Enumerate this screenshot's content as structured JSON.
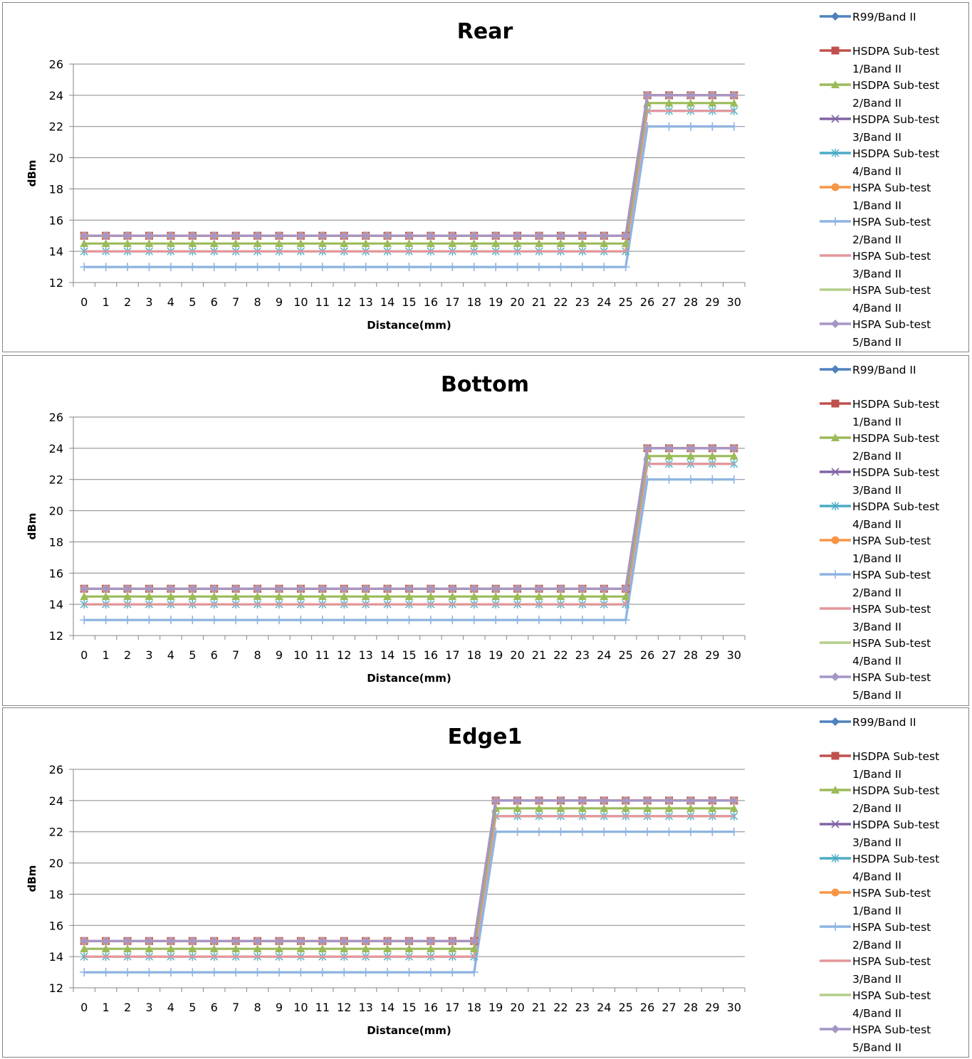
{
  "chart_data": [
    {
      "type": "line",
      "title": "Rear",
      "xlabel": "Distance(mm)",
      "ylabel": "dBm",
      "ylim": [
        12,
        26
      ],
      "yticks": [
        12,
        14,
        16,
        18,
        20,
        22,
        24,
        26
      ],
      "categories": [
        "0",
        "1",
        "2",
        "3",
        "4",
        "5",
        "6",
        "7",
        "8",
        "9",
        "10",
        "11",
        "12",
        "13",
        "14",
        "15",
        "16",
        "17",
        "18",
        "19",
        "20",
        "21",
        "22",
        "23",
        "24",
        "25",
        "26",
        "27",
        "28",
        "29",
        "30"
      ],
      "grid": true,
      "legend_position": "right",
      "series": [
        {
          "name": "R99/Band II",
          "color": "#4F81BD",
          "marker": "diamond",
          "low": 15,
          "high": 24,
          "switch_at": 26
        },
        {
          "name": "HSDPA Sub-test 1/Band II",
          "color": "#C0504D",
          "marker": "square",
          "low": 15,
          "high": 24,
          "switch_at": 26
        },
        {
          "name": "HSDPA Sub-test 2/Band II",
          "color": "#9BBB59",
          "marker": "triangle",
          "low": 14.5,
          "high": 23.5,
          "switch_at": 26
        },
        {
          "name": "HSDPA Sub-test 3/Band II",
          "color": "#8064A2",
          "marker": "x",
          "low": 15,
          "high": 24,
          "switch_at": 26
        },
        {
          "name": "HSDPA Sub-test 4/Band II",
          "color": "#4BACC6",
          "marker": "star",
          "low": 14,
          "high": 23,
          "switch_at": 26
        },
        {
          "name": "HSPA Sub-test 1/Band II",
          "color": "#F79646",
          "marker": "circle",
          "low": 15,
          "high": 24,
          "switch_at": 26
        },
        {
          "name": "HSPA Sub-test 2/Band II",
          "color": "#8EB4E3",
          "marker": "plus",
          "low": 13,
          "high": 22,
          "switch_at": 26
        },
        {
          "name": "HSPA Sub-test 3/Band II",
          "color": "#E6969A",
          "marker": "none",
          "low": 14,
          "high": 23,
          "switch_at": 26
        },
        {
          "name": "HSPA Sub-test 4/Band II",
          "color": "#B3CE89",
          "marker": "none",
          "low": 13,
          "high": 22,
          "switch_at": 26
        },
        {
          "name": "HSPA Sub-test 5/Band II",
          "color": "#A596C6",
          "marker": "diamond",
          "low": 15,
          "high": 24,
          "switch_at": 26
        }
      ]
    },
    {
      "type": "line",
      "title": "Bottom",
      "xlabel": "Distance(mm)",
      "ylabel": "dBm",
      "ylim": [
        12,
        26
      ],
      "yticks": [
        12,
        14,
        16,
        18,
        20,
        22,
        24,
        26
      ],
      "categories": [
        "0",
        "1",
        "2",
        "3",
        "4",
        "5",
        "6",
        "7",
        "8",
        "9",
        "10",
        "11",
        "12",
        "13",
        "14",
        "15",
        "16",
        "17",
        "18",
        "19",
        "20",
        "21",
        "22",
        "23",
        "24",
        "25",
        "26",
        "27",
        "28",
        "29",
        "30"
      ],
      "grid": true,
      "legend_position": "right",
      "series": [
        {
          "name": "R99/Band II",
          "color": "#4F81BD",
          "marker": "diamond",
          "low": 15,
          "high": 24,
          "switch_at": 26
        },
        {
          "name": "HSDPA Sub-test 1/Band II",
          "color": "#C0504D",
          "marker": "square",
          "low": 15,
          "high": 24,
          "switch_at": 26
        },
        {
          "name": "HSDPA Sub-test 2/Band II",
          "color": "#9BBB59",
          "marker": "triangle",
          "low": 14.5,
          "high": 23.5,
          "switch_at": 26
        },
        {
          "name": "HSDPA Sub-test 3/Band II",
          "color": "#8064A2",
          "marker": "x",
          "low": 15,
          "high": 24,
          "switch_at": 26
        },
        {
          "name": "HSDPA Sub-test 4/Band II",
          "color": "#4BACC6",
          "marker": "star",
          "low": 14,
          "high": 23,
          "switch_at": 26
        },
        {
          "name": "HSPA Sub-test 1/Band II",
          "color": "#F79646",
          "marker": "circle",
          "low": 15,
          "high": 24,
          "switch_at": 26
        },
        {
          "name": "HSPA Sub-test 2/Band II",
          "color": "#8EB4E3",
          "marker": "plus",
          "low": 13,
          "high": 22,
          "switch_at": 26
        },
        {
          "name": "HSPA Sub-test 3/Band II",
          "color": "#E6969A",
          "marker": "none",
          "low": 14,
          "high": 23,
          "switch_at": 26
        },
        {
          "name": "HSPA Sub-test 4/Band II",
          "color": "#B3CE89",
          "marker": "none",
          "low": 13,
          "high": 22,
          "switch_at": 26
        },
        {
          "name": "HSPA Sub-test 5/Band II",
          "color": "#A596C6",
          "marker": "diamond",
          "low": 15,
          "high": 24,
          "switch_at": 26
        }
      ]
    },
    {
      "type": "line",
      "title": "Edge1",
      "xlabel": "Distance(mm)",
      "ylabel": "dBm",
      "ylim": [
        12,
        26
      ],
      "yticks": [
        12,
        14,
        16,
        18,
        20,
        22,
        24,
        26
      ],
      "categories": [
        "0",
        "1",
        "2",
        "3",
        "4",
        "5",
        "6",
        "7",
        "8",
        "9",
        "10",
        "11",
        "12",
        "13",
        "14",
        "15",
        "16",
        "17",
        "18",
        "19",
        "20",
        "21",
        "22",
        "23",
        "24",
        "25",
        "26",
        "27",
        "28",
        "29",
        "30"
      ],
      "grid": true,
      "legend_position": "right",
      "series": [
        {
          "name": "R99/Band II",
          "color": "#4F81BD",
          "marker": "diamond",
          "low": 15,
          "high": 24,
          "switch_at": 19
        },
        {
          "name": "HSDPA Sub-test 1/Band II",
          "color": "#C0504D",
          "marker": "square",
          "low": 15,
          "high": 24,
          "switch_at": 19
        },
        {
          "name": "HSDPA Sub-test 2/Band II",
          "color": "#9BBB59",
          "marker": "triangle",
          "low": 14.5,
          "high": 23.5,
          "switch_at": 19
        },
        {
          "name": "HSDPA Sub-test 3/Band II",
          "color": "#8064A2",
          "marker": "x",
          "low": 15,
          "high": 24,
          "switch_at": 19
        },
        {
          "name": "HSDPA Sub-test 4/Band II",
          "color": "#4BACC6",
          "marker": "star",
          "low": 14,
          "high": 23,
          "switch_at": 19
        },
        {
          "name": "HSPA Sub-test 1/Band II",
          "color": "#F79646",
          "marker": "circle",
          "low": 15,
          "high": 24,
          "switch_at": 19
        },
        {
          "name": "HSPA Sub-test 2/Band II",
          "color": "#8EB4E3",
          "marker": "plus",
          "low": 13,
          "high": 22,
          "switch_at": 19
        },
        {
          "name": "HSPA Sub-test 3/Band II",
          "color": "#E6969A",
          "marker": "none",
          "low": 14,
          "high": 23,
          "switch_at": 19
        },
        {
          "name": "HSPA Sub-test 4/Band II",
          "color": "#B3CE89",
          "marker": "none",
          "low": 13,
          "high": 22,
          "switch_at": 19
        },
        {
          "name": "HSPA Sub-test 5/Band II",
          "color": "#A596C6",
          "marker": "diamond",
          "low": 15,
          "high": 24,
          "switch_at": 19
        }
      ]
    }
  ],
  "legend_labels": {
    "line1": [
      "R99/Band II",
      "HSDPA Sub-test",
      "HSDPA Sub-test",
      "HSDPA Sub-test",
      "HSDPA Sub-test",
      "HSPA Sub-test",
      "HSPA Sub-test",
      "HSPA Sub-test",
      "HSPA Sub-test",
      "HSPA Sub-test"
    ],
    "line2": [
      "",
      "1/Band II",
      "2/Band II",
      "3/Band II",
      "4/Band II",
      "1/Band II",
      "2/Band II",
      "3/Band II",
      "4/Band II",
      "5/Band II"
    ]
  }
}
